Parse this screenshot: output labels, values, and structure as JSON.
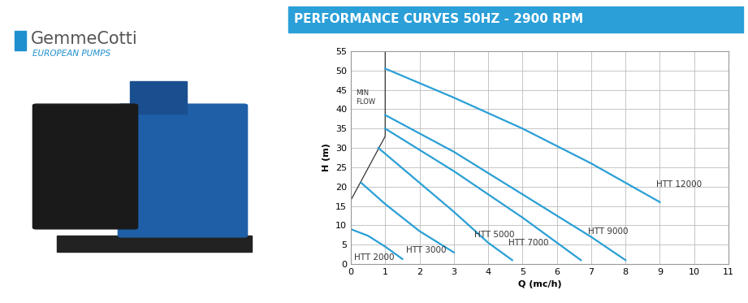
{
  "chart_data": {
    "type": "line",
    "title": "PERFORMANCE CURVES 50HZ - 2900 RPM",
    "brand": {
      "name": "GemmeCotti",
      "tagline": "EUROPEAN PUMPS"
    },
    "x_label": "Q (mc/h)",
    "y_label": "H (m)",
    "xlim": [
      0,
      11
    ],
    "xticks": [
      0,
      1,
      2,
      3,
      4,
      5,
      6,
      7,
      8,
      9,
      10,
      11
    ],
    "ylim": [
      0,
      55
    ],
    "yticks": [
      0,
      5,
      10,
      15,
      20,
      25,
      30,
      35,
      40,
      45,
      50,
      55
    ],
    "grid": true,
    "color": "#2a9fd6",
    "series": [
      {
        "name": "HTT 2000",
        "x": [
          0,
          0.5,
          1,
          1.5
        ],
        "values": [
          9,
          7.3,
          4.5,
          1.3
        ]
      },
      {
        "name": "HTT 3000",
        "x": [
          0.3,
          1,
          2,
          3
        ],
        "values": [
          21,
          15.5,
          8.5,
          3
        ]
      },
      {
        "name": "HTT 5000",
        "x": [
          0.8,
          2,
          3,
          4,
          4.7
        ],
        "values": [
          30,
          21,
          13.5,
          5.5,
          1
        ]
      },
      {
        "name": "HTT 7000",
        "x": [
          1,
          3,
          5,
          6.7
        ],
        "values": [
          35,
          24,
          12,
          1
        ]
      },
      {
        "name": "HTT 9000",
        "x": [
          1,
          3,
          5,
          7,
          8
        ],
        "values": [
          38.5,
          29,
          18,
          7,
          1
        ]
      },
      {
        "name": "HTT 12000",
        "x": [
          1,
          3,
          5,
          7,
          9
        ],
        "values": [
          50.5,
          43,
          35,
          26,
          16
        ]
      }
    ],
    "min_flow": {
      "label": "MIN\nFLOW",
      "x": [
        0,
        1,
        1
      ],
      "values": [
        16.5,
        33,
        55
      ],
      "color": "#333333"
    }
  }
}
